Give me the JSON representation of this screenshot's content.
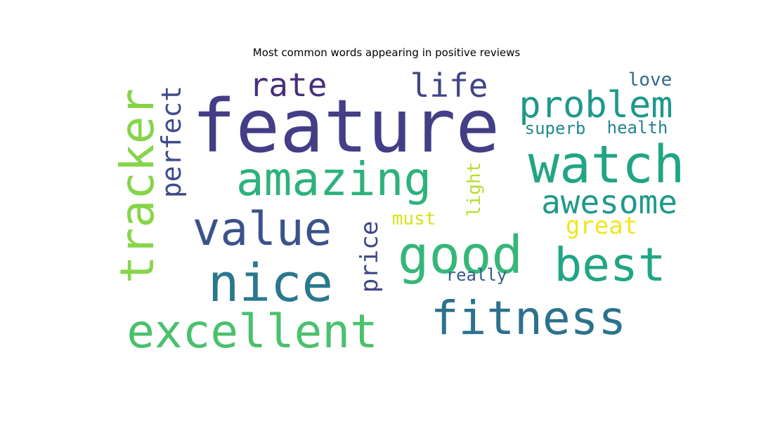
{
  "title": "Most common words appearing in positive reviews",
  "words": [
    {
      "text": "feature",
      "color": "#433e85"
    },
    {
      "text": "watch",
      "color": "#21a585"
    },
    {
      "text": "amazing",
      "color": "#2db27d"
    },
    {
      "text": "tracker",
      "color": "#86d549"
    },
    {
      "text": "value",
      "color": "#3b528b"
    },
    {
      "text": "good",
      "color": "#35b779"
    },
    {
      "text": "nice",
      "color": "#2a788e"
    },
    {
      "text": "excellent",
      "color": "#4ac16d"
    },
    {
      "text": "fitness",
      "color": "#2c728e"
    },
    {
      "text": "best",
      "color": "#21a685"
    },
    {
      "text": "problem",
      "color": "#1f988b"
    },
    {
      "text": "awesome",
      "color": "#1f9a8a"
    },
    {
      "text": "life",
      "color": "#414487"
    },
    {
      "text": "rate",
      "color": "#472f7d"
    },
    {
      "text": "perfect",
      "color": "#3e4a89"
    },
    {
      "text": "price",
      "color": "#404688"
    },
    {
      "text": "light",
      "color": "#b5de2b"
    },
    {
      "text": "great",
      "color": "#f1e51d"
    },
    {
      "text": "superb",
      "color": "#23898e"
    },
    {
      "text": "health",
      "color": "#26828e"
    },
    {
      "text": "love",
      "color": "#31688e"
    },
    {
      "text": "must",
      "color": "#d8e219"
    },
    {
      "text": "really",
      "color": "#365c8d"
    }
  ]
}
